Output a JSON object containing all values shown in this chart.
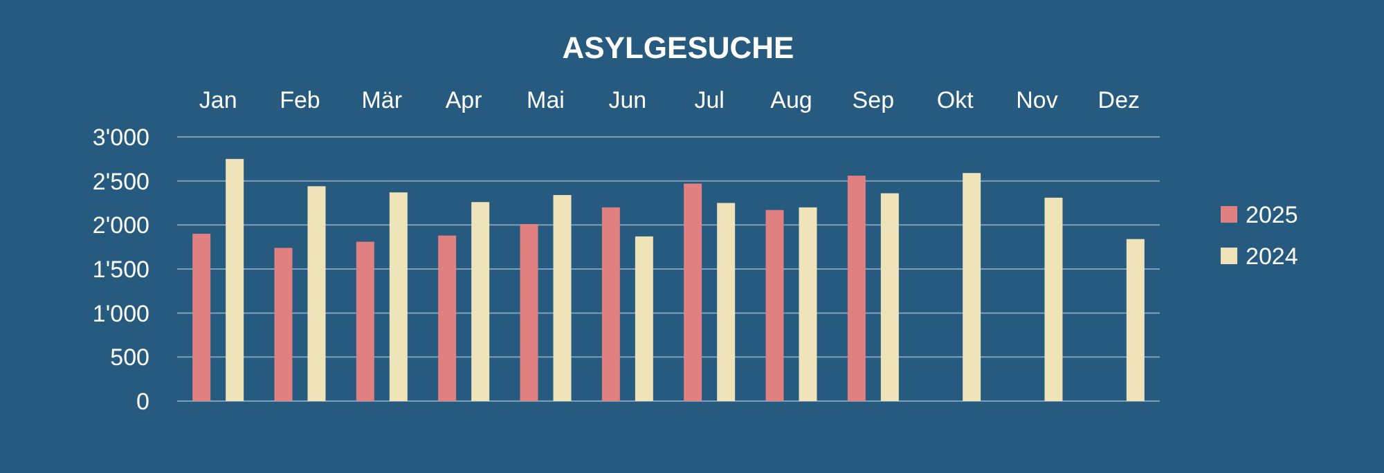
{
  "chart_data": {
    "type": "bar",
    "title": "ASYLGESUCHE",
    "categories": [
      "Jan",
      "Feb",
      "Mär",
      "Apr",
      "Mai",
      "Jun",
      "Jul",
      "Aug",
      "Sep",
      "Okt",
      "Nov",
      "Dez"
    ],
    "series": [
      {
        "name": "2025",
        "color": "#e08080",
        "values": [
          1900,
          1740,
          1810,
          1880,
          2010,
          2200,
          2470,
          2170,
          2560,
          null,
          null,
          null
        ]
      },
      {
        "name": "2024",
        "color": "#efe4b9",
        "values": [
          2750,
          2440,
          2370,
          2260,
          2340,
          1870,
          2250,
          2200,
          2360,
          2590,
          2310,
          1840
        ]
      }
    ],
    "ylim": [
      0,
      3000
    ],
    "yticks": [
      0,
      500,
      {
        "value": 1000,
        "label": "1'000"
      },
      {
        "value": 1500,
        "label": "1'500"
      },
      {
        "value": 2000,
        "label": "2'000"
      },
      {
        "value": 2500,
        "label": "2'500"
      },
      {
        "value": 3000,
        "label": "3'000"
      }
    ],
    "grid": "y",
    "legend": "right"
  }
}
